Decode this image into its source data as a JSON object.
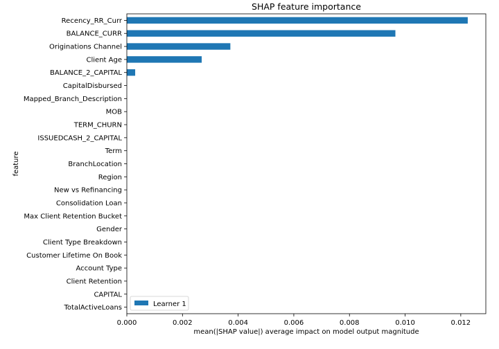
{
  "chart_data": {
    "type": "bar",
    "orientation": "horizontal",
    "title": "SHAP feature importance",
    "xlabel": "mean(|SHAP value|) average impact on model output magnitude",
    "ylabel": "feature",
    "xlim": [
      0,
      0.0129
    ],
    "xticks": [
      "0.000",
      "0.002",
      "0.004",
      "0.006",
      "0.008",
      "0.010",
      "0.012"
    ],
    "xtick_values": [
      0,
      0.002,
      0.004,
      0.006,
      0.008,
      0.01,
      0.012
    ],
    "grid": false,
    "legend_position": "lower-left",
    "bar_color": "#1f77b4",
    "categories": [
      "Recency_RR_Curr",
      "BALANCE_CURR",
      "Originations Channel",
      "Client Age",
      "BALANCE_2_CAPITAL",
      "CapitalDisbursed",
      "Mapped_Branch_Description",
      "MOB",
      "TERM_CHURN",
      "ISSUEDCASH_2_CAPITAL",
      "Term",
      "BranchLocation",
      "Region",
      "New vs Refinancing",
      "Consolidation Loan",
      "Max Client Retention Bucket",
      "Gender",
      "Client Type Breakdown",
      "Customer Lifetime On Book",
      "Account Type",
      "Client Retention",
      "CAPITAL",
      "TotalActiveLoans"
    ],
    "series": [
      {
        "name": "Learner 1",
        "values": [
          0.01225,
          0.00965,
          0.00372,
          0.00269,
          0.0003,
          0,
          0,
          0,
          0,
          0,
          0,
          0,
          0,
          0,
          0,
          0,
          0,
          0,
          0,
          0,
          0,
          0,
          0
        ]
      }
    ]
  }
}
